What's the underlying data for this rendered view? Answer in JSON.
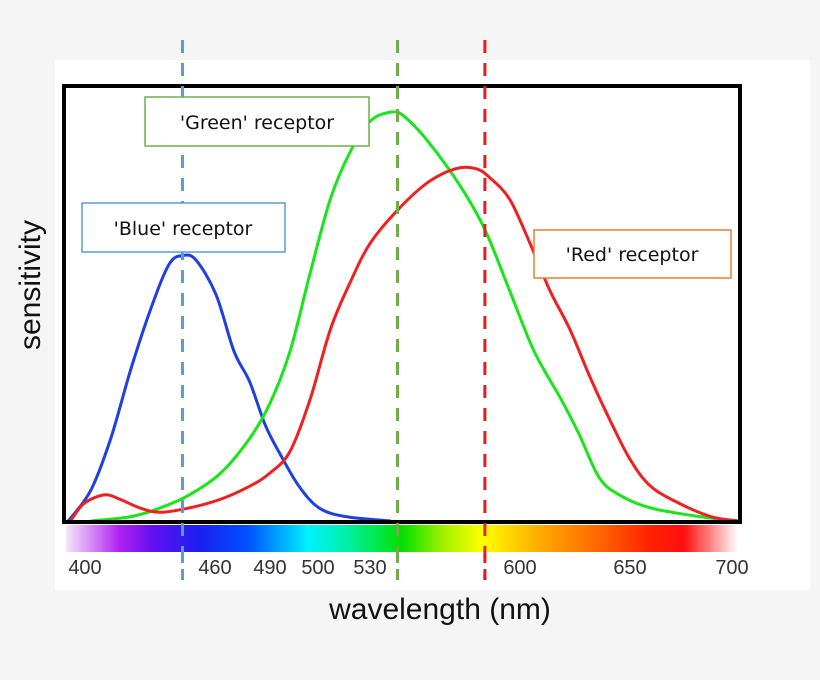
{
  "chart_data": {
    "type": "line",
    "title": "",
    "xlabel": "wavelength (nm)",
    "ylabel": "sensitivity",
    "xlim": [
      400,
      700
    ],
    "ylim": [
      0,
      1
    ],
    "grid": false,
    "x_tick_labels": [
      "400",
      "460",
      "490",
      "500",
      "530",
      "600",
      "650",
      "700"
    ],
    "x_ticks": [
      400,
      460,
      490,
      500,
      530,
      600,
      650,
      700
    ],
    "series": [
      {
        "name": "'Blue' receptor",
        "color": "#1f3fe6",
        "label_border": "#5b9bd5",
        "x": [
          401,
          411,
          420,
          429,
          438,
          446,
          452,
          458,
          467,
          475,
          482,
          489,
          496,
          504,
          513,
          525,
          545
        ],
        "y": [
          0,
          0.07,
          0.19,
          0.35,
          0.49,
          0.59,
          0.61,
          0.6,
          0.52,
          0.39,
          0.32,
          0.22,
          0.15,
          0.08,
          0.03,
          0.01,
          0
        ]
      },
      {
        "name": "'Green' receptor",
        "color": "#19e619",
        "label_border": "#70ad47",
        "x": [
          411,
          429,
          442,
          455,
          469,
          482,
          491,
          500,
          509,
          518,
          527,
          536,
          545,
          551,
          562,
          576,
          587,
          598,
          609,
          621,
          629,
          638,
          647,
          661,
          683,
          700
        ],
        "y": [
          0,
          0.01,
          0.03,
          0.06,
          0.11,
          0.19,
          0.27,
          0.39,
          0.57,
          0.74,
          0.85,
          0.92,
          0.94,
          0.93,
          0.87,
          0.77,
          0.67,
          0.53,
          0.39,
          0.28,
          0.2,
          0.1,
          0.06,
          0.03,
          0.01,
          0
        ]
      },
      {
        "name": "'Red' receptor",
        "color": "#f02020",
        "label_border": "#ed7d31",
        "x": [
          402,
          408,
          417,
          424,
          433,
          442,
          455,
          469,
          482,
          491,
          500,
          509,
          518,
          527,
          536,
          549,
          562,
          574,
          583,
          589,
          598,
          607,
          616,
          625,
          634,
          643,
          652,
          661,
          674,
          688,
          700
        ],
        "y": [
          0,
          0.04,
          0.06,
          0.05,
          0.03,
          0.02,
          0.03,
          0.05,
          0.08,
          0.11,
          0.16,
          0.28,
          0.44,
          0.55,
          0.64,
          0.72,
          0.78,
          0.81,
          0.81,
          0.79,
          0.74,
          0.64,
          0.53,
          0.44,
          0.33,
          0.23,
          0.14,
          0.08,
          0.04,
          0.01,
          0
        ]
      }
    ],
    "reference_lines": [
      {
        "x": 452,
        "color": "#5b9bd5",
        "style": "dashed"
      },
      {
        "x": 548,
        "color": "#70ad47",
        "style": "dashed"
      },
      {
        "x": 587,
        "color": "#e81c1c",
        "style": "dashed"
      }
    ],
    "color_bar": "visible spectrum 400-700 nm"
  }
}
